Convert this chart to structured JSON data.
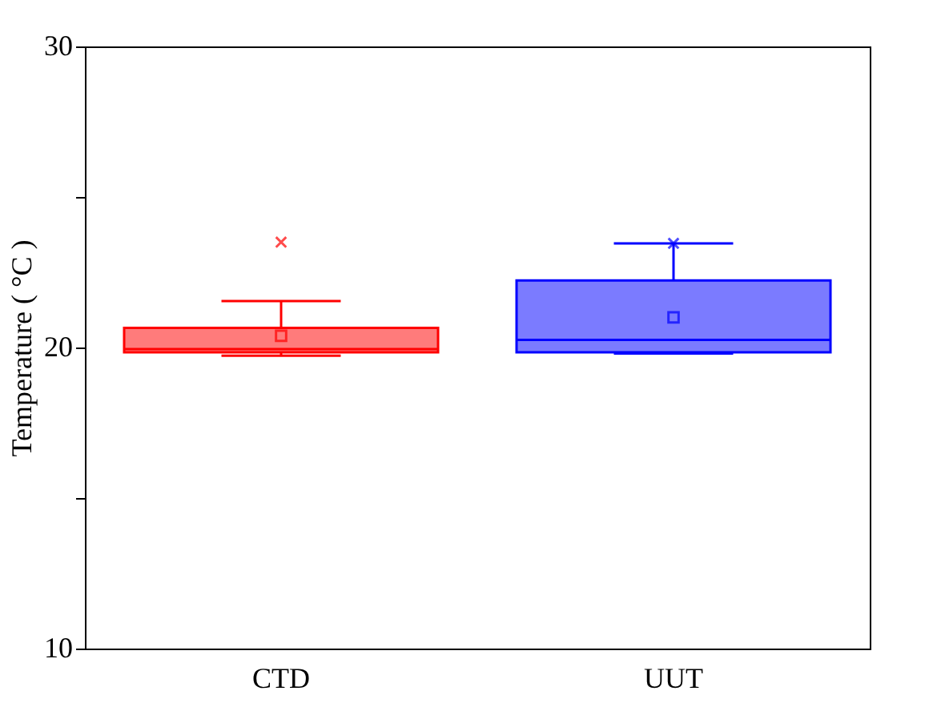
{
  "chart_data": {
    "type": "box",
    "categories": [
      "CTD",
      "UUT"
    ],
    "boxes": [
      {
        "low": 19.73,
        "q1": 19.84,
        "median": 19.95,
        "q3": 20.65,
        "high": 21.54,
        "mean": 20.39,
        "outliers": [
          23.5
        ]
      },
      {
        "low": 19.8,
        "q1": 19.84,
        "median": 20.25,
        "q3": 22.23,
        "high": 23.46,
        "mean": 21.0,
        "outliers": [
          23.46
        ]
      }
    ],
    "colors": [
      "#ff7b7b",
      "#7b7bff"
    ],
    "ylabel": "Temperature ( °C )",
    "ylim": [
      10,
      30
    ],
    "yticks": [
      10,
      {
        "value": 15,
        "label": null
      },
      20,
      {
        "value": 25,
        "label": null
      },
      30
    ],
    "grid": false,
    "legend": false
  }
}
